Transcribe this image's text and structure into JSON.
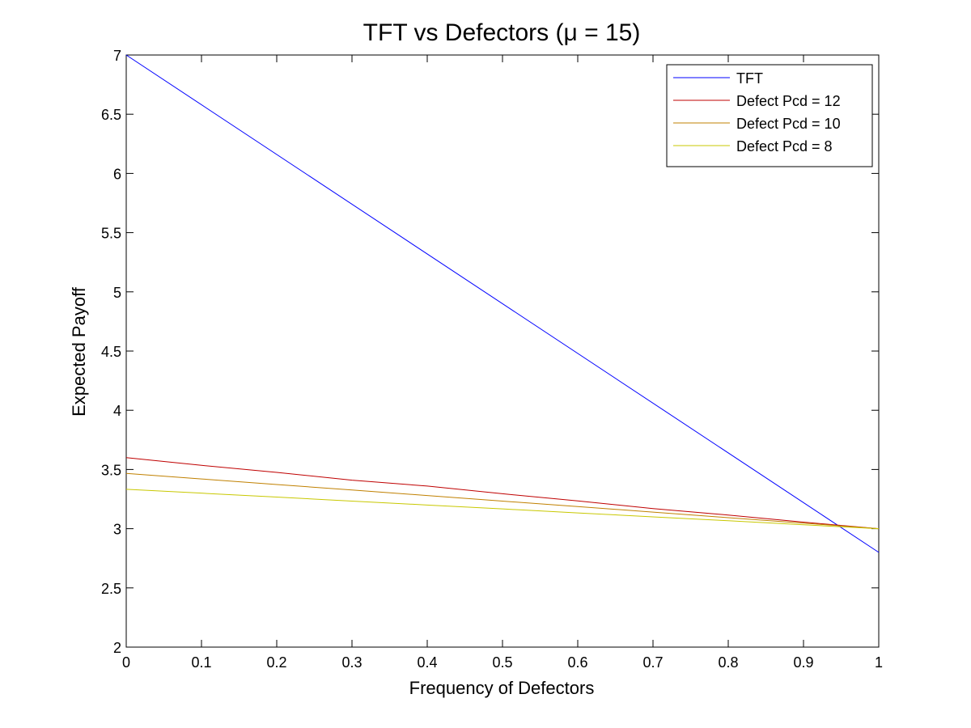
{
  "chart_data": {
    "type": "line",
    "title": "TFT vs Defectors (μ = 15)",
    "xlabel": "Frequency of Defectors",
    "ylabel": "Expected Payoff",
    "xlim": [
      0,
      1
    ],
    "ylim": [
      2,
      7
    ],
    "xticks": [
      0,
      0.1,
      0.2,
      0.3,
      0.4,
      0.5,
      0.6,
      0.7,
      0.8,
      0.9,
      1
    ],
    "xtick_labels": [
      "0",
      "0.1",
      "0.2",
      "0.3",
      "0.4",
      "0.5",
      "0.6",
      "0.7",
      "0.8",
      "0.9",
      "1"
    ],
    "yticks": [
      2,
      2.5,
      3,
      3.5,
      4,
      4.5,
      5,
      5.5,
      6,
      6.5,
      7
    ],
    "ytick_labels": [
      "2",
      "2.5",
      "3",
      "3.5",
      "4",
      "4.5",
      "5",
      "5.5",
      "6",
      "6.5",
      "7"
    ],
    "grid": false,
    "legend_position": "top-right",
    "series": [
      {
        "name": "TFT",
        "color": "#0000ff",
        "x": [
          0,
          1
        ],
        "y": [
          7.0,
          2.8
        ]
      },
      {
        "name": "Defect  Pcd = 12",
        "color": "#bf0000",
        "x": [
          0,
          0.1,
          0.2,
          0.3,
          0.4,
          0.5,
          0.6,
          0.7,
          0.8,
          0.9,
          1
        ],
        "y": [
          3.6,
          3.535,
          3.475,
          3.41,
          3.36,
          3.295,
          3.235,
          3.17,
          3.115,
          3.055,
          3.0
        ]
      },
      {
        "name": "Defect  Pcd = 10",
        "color": "#c08000",
        "x": [
          0,
          0.1,
          0.2,
          0.3,
          0.4,
          0.5,
          0.6,
          0.7,
          0.8,
          0.9,
          1
        ],
        "y": [
          3.467,
          3.42,
          3.373,
          3.327,
          3.28,
          3.233,
          3.187,
          3.14,
          3.093,
          3.047,
          3.0
        ]
      },
      {
        "name": "Defect  Pcd = 8",
        "color": "#c8c800",
        "x": [
          0,
          0.1,
          0.2,
          0.3,
          0.4,
          0.5,
          0.6,
          0.7,
          0.8,
          0.9,
          1
        ],
        "y": [
          3.333,
          3.3,
          3.267,
          3.233,
          3.2,
          3.167,
          3.133,
          3.1,
          3.067,
          3.033,
          3.0
        ]
      }
    ]
  }
}
